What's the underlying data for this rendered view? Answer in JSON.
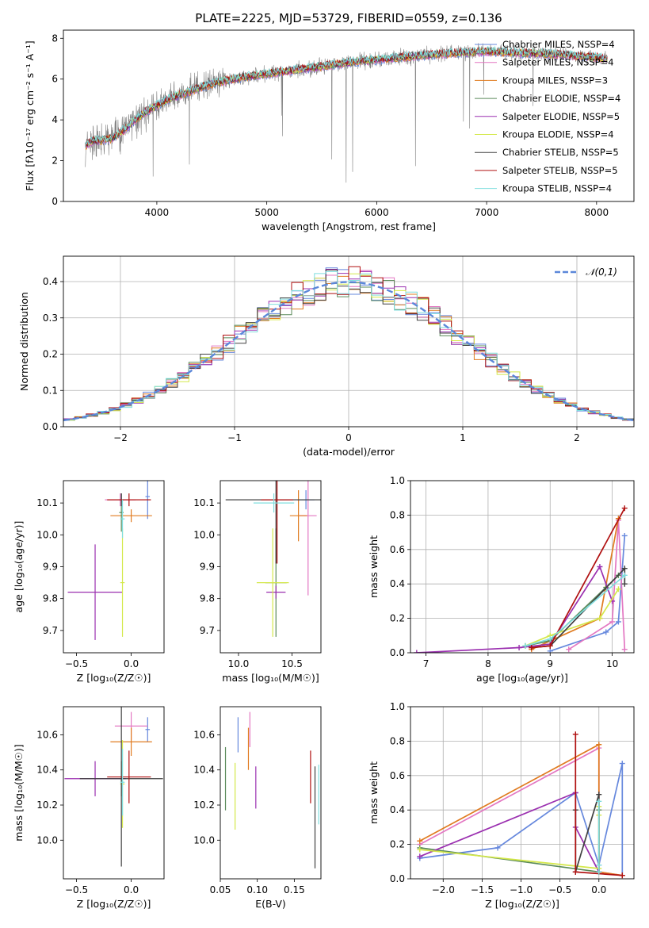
{
  "title": "PLATE=2225, MJD=53729, FIBERID=0559, z=0.136",
  "colors": {
    "Chabrier MILES": "#6688dd",
    "Salpeter MILES": "#e377c2",
    "Kroupa MILES": "#e07b20",
    "Chabrier ELODIE": "#5a8a5a",
    "Salpeter ELODIE": "#9b30b0",
    "Kroupa ELODIE": "#d4e84a",
    "Chabrier STELIB": "#404040",
    "Salpeter STELIB": "#b01010",
    "Kroupa STELIB": "#7fdede",
    "data": "#808080",
    "gaussian": "#5b87d9"
  },
  "chart_data": [
    {
      "type": "line",
      "id": "spectrum",
      "xlabel": "wavelength [Angstrom, rest frame]",
      "ylabel": "Flux [fλ10⁻¹⁷ erg cm⁻² s⁻¹ A⁻¹]",
      "xlim": [
        3150,
        8340
      ],
      "ylim": [
        0,
        8.4
      ],
      "xticks": [
        4000,
        5000,
        6000,
        7000,
        8000
      ],
      "yticks": [
        0,
        2,
        4,
        6,
        8
      ],
      "legend_position": "right",
      "legend": [
        "Chabrier MILES, NSSP=4",
        "Salpeter MILES, NSSP=4",
        "Kroupa MILES, NSSP=3",
        "Chabrier ELODIE, NSSP=4",
        "Salpeter ELODIE, NSSP=5",
        "Kroupa ELODIE, NSSP=4",
        "Chabrier STELIB, NSSP=5",
        "Salpeter STELIB, NSSP=5",
        "Kroupa STELIB, NSSP=4"
      ],
      "model_continuum": {
        "x": [
          3350,
          3400,
          3500,
          3600,
          3700,
          3800,
          3900,
          4000,
          4100,
          4200,
          4300,
          4400,
          4500,
          4600,
          4800,
          5000,
          5200,
          5400,
          5600,
          5800,
          6000,
          6200,
          6500,
          6800,
          7000,
          7200,
          7500,
          7800,
          8100
        ],
        "y": [
          2.7,
          2.95,
          3.0,
          3.1,
          3.5,
          4.0,
          4.4,
          4.7,
          5.0,
          5.2,
          5.4,
          5.6,
          5.75,
          5.9,
          6.1,
          6.25,
          6.4,
          6.55,
          6.7,
          6.85,
          6.95,
          7.05,
          7.2,
          7.3,
          7.35,
          7.3,
          7.25,
          7.15,
          7.0
        ]
      }
    },
    {
      "type": "histogram",
      "id": "residuals",
      "xlabel": "(data-model)/error",
      "ylabel": "Normed distribution",
      "xlim": [
        -2.5,
        2.5
      ],
      "ylim": [
        0,
        0.47
      ],
      "xticks": [
        -2,
        -1,
        0,
        1,
        2
      ],
      "yticks": [
        0.0,
        0.1,
        0.2,
        0.3,
        0.4
      ],
      "legend": [
        "𝒩(0,1)"
      ],
      "legend_position": "top-right",
      "grid": true
    },
    {
      "type": "scatter",
      "id": "age-vs-Z",
      "xlabel": "Z [log₁₀(Z/Z☉)]",
      "ylabel": "age  [log₁₀(age/yr)]",
      "xlim": [
        -0.62,
        0.3
      ],
      "ylim": [
        9.63,
        10.17
      ],
      "xticks": [
        -0.5,
        0.0
      ],
      "yticks": [
        9.7,
        9.8,
        9.9,
        10.0,
        10.1
      ],
      "points": [
        {
          "model": "Chabrier MILES",
          "x": 0.15,
          "xerr": 0.02,
          "y": 10.12,
          "yerr": 0.07
        },
        {
          "model": "Salpeter MILES",
          "x": -0.1,
          "xerr": 0.14,
          "y": 10.11,
          "yerr": 0.02
        },
        {
          "model": "Kroupa MILES",
          "x": 0.0,
          "xerr": 0.19,
          "y": 10.06,
          "yerr": 0.02
        },
        {
          "model": "Chabrier ELODIE",
          "x": -0.09,
          "xerr": 0.02,
          "y": 10.07,
          "yerr": 0.06
        },
        {
          "model": "Salpeter ELODIE",
          "x": -0.33,
          "xerr": 0.25,
          "y": 9.82,
          "yerr": 0.15
        },
        {
          "model": "Kroupa ELODIE",
          "x": -0.08,
          "xerr": 0.02,
          "y": 9.85,
          "yerr": 0.17
        },
        {
          "model": "Chabrier STELIB",
          "x": -0.09,
          "xerr": 0.02,
          "y": 10.11,
          "yerr": 0.02
        },
        {
          "model": "Salpeter STELIB",
          "x": -0.02,
          "xerr": 0.2,
          "y": 10.11,
          "yerr": 0.02
        },
        {
          "model": "Kroupa STELIB",
          "x": -0.08,
          "xerr": 0.02,
          "y": 10.05,
          "yerr": 0.06
        }
      ]
    },
    {
      "type": "scatter",
      "id": "age-vs-mass",
      "xlabel": "mass [log₁₀(M/M☉)]",
      "ylabel": "",
      "xlim": [
        9.83,
        10.77
      ],
      "ylim": [
        9.63,
        10.17
      ],
      "xticks": [
        10.0,
        10.5
      ],
      "yticks": [
        9.7,
        9.8,
        9.9,
        10.0,
        10.1
      ],
      "points": [
        {
          "model": "Chabrier MILES",
          "x": 10.63,
          "xerr": 0.08,
          "y": 10.11,
          "yerr": 0.03
        },
        {
          "model": "Salpeter MILES",
          "x": 10.65,
          "xerr": 0.08,
          "y": 10.06,
          "yerr": 0.25
        },
        {
          "model": "Kroupa MILES",
          "x": 10.56,
          "xerr": 0.08,
          "y": 10.06,
          "yerr": 0.08
        },
        {
          "model": "Chabrier ELODIE",
          "x": 10.35,
          "xerr": 0.1,
          "y": 9.85,
          "yerr": 0.17
        },
        {
          "model": "Salpeter ELODIE",
          "x": 10.35,
          "xerr": 0.09,
          "y": 9.82,
          "yerr": 0.02
        },
        {
          "model": "Kroupa ELODIE",
          "x": 10.32,
          "xerr": 0.15,
          "y": 9.85,
          "yerr": 0.17
        },
        {
          "model": "Chabrier STELIB",
          "x": 10.35,
          "xerr": 0.47,
          "y": 10.11,
          "yerr": 0.2
        },
        {
          "model": "Salpeter STELIB",
          "x": 10.36,
          "xerr": 0.15,
          "y": 10.11,
          "yerr": 0.2
        },
        {
          "model": "Kroupa STELIB",
          "x": 10.33,
          "xerr": 0.19,
          "y": 10.1,
          "yerr": 0.03
        }
      ]
    },
    {
      "type": "line",
      "id": "weight-vs-age",
      "xlabel": "age  [log₁₀(age/yr)]",
      "ylabel": "mass weight",
      "xlim": [
        6.75,
        10.35
      ],
      "ylim": [
        0,
        1
      ],
      "xticks": [
        7,
        8,
        9,
        10
      ],
      "yticks": [
        0.0,
        0.2,
        0.4,
        0.6,
        0.8,
        1.0
      ],
      "grid": true,
      "series": [
        {
          "model": "Chabrier MILES",
          "points": [
            [
              9.0,
              0.01
            ],
            [
              9.9,
              0.12
            ],
            [
              10.1,
              0.18
            ],
            [
              10.2,
              0.68
            ]
          ]
        },
        {
          "model": "Salpeter MILES",
          "points": [
            [
              9.3,
              0.02
            ],
            [
              10.0,
              0.18
            ],
            [
              10.1,
              0.77
            ],
            [
              10.2,
              0.02
            ]
          ]
        },
        {
          "model": "Kroupa MILES",
          "points": [
            [
              8.7,
              0.02
            ],
            [
              9.8,
              0.2
            ],
            [
              10.1,
              0.78
            ]
          ]
        },
        {
          "model": "Chabrier ELODIE",
          "points": [
            [
              8.6,
              0.04
            ],
            [
              9.0,
              0.07
            ],
            [
              9.9,
              0.38
            ],
            [
              10.1,
              0.45
            ]
          ]
        },
        {
          "model": "Salpeter ELODIE",
          "points": [
            [
              6.85,
              0.0
            ],
            [
              8.5,
              0.03
            ],
            [
              9.0,
              0.05
            ],
            [
              9.8,
              0.5
            ],
            [
              10.0,
              0.3
            ]
          ]
        },
        {
          "model": "Kroupa ELODIE",
          "points": [
            [
              8.6,
              0.04
            ],
            [
              9.0,
              0.1
            ],
            [
              9.8,
              0.2
            ],
            [
              10.1,
              0.37
            ]
          ]
        },
        {
          "model": "Chabrier STELIB",
          "points": [
            [
              8.7,
              0.03
            ],
            [
              9.0,
              0.04
            ],
            [
              10.2,
              0.49
            ],
            [
              10.2,
              0.4
            ]
          ]
        },
        {
          "model": "Salpeter STELIB",
          "points": [
            [
              8.7,
              0.03
            ],
            [
              9.0,
              0.04
            ],
            [
              10.2,
              0.84
            ]
          ]
        },
        {
          "model": "Kroupa STELIB",
          "points": [
            [
              8.6,
              0.04
            ],
            [
              9.0,
              0.08
            ],
            [
              10.2,
              0.45
            ]
          ]
        }
      ]
    },
    {
      "type": "scatter",
      "id": "mass-vs-Z",
      "xlabel": "Z [log₁₀(Z/Z☉)]",
      "ylabel": "mass [log₁₀(M/M☉)]",
      "xlim": [
        -0.62,
        0.3
      ],
      "ylim": [
        9.78,
        10.76
      ],
      "xticks": [
        -0.5,
        0.0
      ],
      "yticks": [
        10.0,
        10.2,
        10.4,
        10.6
      ],
      "points": [
        {
          "model": "Chabrier MILES",
          "x": 0.15,
          "xerr": 0.02,
          "y": 10.63,
          "yerr": 0.07
        },
        {
          "model": "Salpeter MILES",
          "x": 0.0,
          "xerr": 0.15,
          "y": 10.65,
          "yerr": 0.08
        },
        {
          "model": "Kroupa MILES",
          "x": 0.0,
          "xerr": 0.19,
          "y": 10.56,
          "yerr": 0.08
        },
        {
          "model": "Chabrier ELODIE",
          "x": -0.09,
          "xerr": 0.02,
          "y": 10.35,
          "yerr": 0.1
        },
        {
          "model": "Salpeter ELODIE",
          "x": -0.33,
          "xerr": 0.28,
          "y": 10.35,
          "yerr": 0.1
        },
        {
          "model": "Kroupa ELODIE",
          "x": -0.08,
          "xerr": 0.02,
          "y": 10.32,
          "yerr": 0.25
        },
        {
          "model": "Chabrier STELIB",
          "x": -0.09,
          "xerr": 0.38,
          "y": 10.35,
          "yerr": 0.5
        },
        {
          "model": "Salpeter STELIB",
          "x": -0.02,
          "xerr": 0.2,
          "y": 10.36,
          "yerr": 0.15
        },
        {
          "model": "Kroupa STELIB",
          "x": -0.08,
          "xerr": 0.02,
          "y": 10.33,
          "yerr": 0.19
        }
      ]
    },
    {
      "type": "scatter",
      "id": "mass-vs-EBV",
      "xlabel": "E(B-V)",
      "ylabel": "",
      "xlim": [
        0.05,
        0.186
      ],
      "ylim": [
        9.78,
        10.76
      ],
      "xticks": [
        0.05,
        0.1,
        0.15
      ],
      "xticklabels": [
        "0.05",
        "0.10",
        "0.15"
      ],
      "yticks": [
        10.0,
        10.2,
        10.4,
        10.6
      ],
      "points": [
        {
          "model": "Chabrier MILES",
          "x": 0.074,
          "y": 10.6,
          "yerr": 0.1
        },
        {
          "model": "Salpeter MILES",
          "x": 0.09,
          "y": 10.63,
          "yerr": 0.1
        },
        {
          "model": "Kroupa MILES",
          "x": 0.088,
          "y": 10.52,
          "yerr": 0.12
        },
        {
          "model": "Chabrier ELODIE",
          "x": 0.057,
          "y": 10.35,
          "yerr": 0.18
        },
        {
          "model": "Salpeter ELODIE",
          "x": 0.098,
          "y": 10.3,
          "yerr": 0.12
        },
        {
          "model": "Kroupa ELODIE",
          "x": 0.07,
          "y": 10.25,
          "yerr": 0.19
        },
        {
          "model": "Chabrier STELIB",
          "x": 0.178,
          "y": 10.13,
          "yerr": 0.29
        },
        {
          "model": "Salpeter STELIB",
          "x": 0.172,
          "y": 10.36,
          "yerr": 0.15
        },
        {
          "model": "Kroupa STELIB",
          "x": 0.183,
          "y": 10.26,
          "yerr": 0.17
        }
      ]
    },
    {
      "type": "line",
      "id": "weight-vs-Z",
      "xlabel": "Z [log₁₀(Z/Z☉)]",
      "ylabel": "mass weight",
      "xlim": [
        -2.42,
        0.45
      ],
      "ylim": [
        0,
        1
      ],
      "xticks": [
        -2.0,
        -1.5,
        -1.0,
        -0.5,
        0.0
      ],
      "yticks": [
        0.0,
        0.2,
        0.4,
        0.6,
        0.8,
        1.0
      ],
      "grid": true,
      "series": [
        {
          "model": "Chabrier MILES",
          "points": [
            [
              -2.3,
              0.12
            ],
            [
              -1.3,
              0.18
            ],
            [
              -0.3,
              0.5
            ],
            [
              0.0,
              0.08
            ],
            [
              0.3,
              0.67
            ],
            [
              0.3,
              0.02
            ]
          ]
        },
        {
          "model": "Salpeter MILES",
          "points": [
            [
              -2.3,
              0.2
            ],
            [
              0.0,
              0.76
            ],
            [
              0.0,
              0.04
            ],
            [
              0.3,
              0.02
            ]
          ]
        },
        {
          "model": "Kroupa MILES",
          "points": [
            [
              -2.3,
              0.22
            ],
            [
              0.0,
              0.78
            ],
            [
              0.0,
              0.04
            ],
            [
              0.3,
              0.02
            ]
          ]
        },
        {
          "model": "Chabrier ELODIE",
          "points": [
            [
              -2.3,
              0.18
            ],
            [
              0.0,
              0.04
            ],
            [
              0.0,
              0.4
            ]
          ]
        },
        {
          "model": "Salpeter ELODIE",
          "points": [
            [
              -2.3,
              0.13
            ],
            [
              -0.3,
              0.5
            ],
            [
              -0.3,
              0.3
            ],
            [
              0.0,
              0.04
            ]
          ]
        },
        {
          "model": "Kroupa ELODIE",
          "points": [
            [
              -2.3,
              0.17
            ],
            [
              0.0,
              0.06
            ],
            [
              0.0,
              0.42
            ],
            [
              0.0,
              0.37
            ]
          ]
        },
        {
          "model": "Chabrier STELIB",
          "points": [
            [
              -0.3,
              0.4
            ],
            [
              -0.3,
              0.04
            ],
            [
              0.0,
              0.49
            ],
            [
              0.0,
              0.04
            ]
          ]
        },
        {
          "model": "Salpeter STELIB",
          "points": [
            [
              -0.3,
              0.84
            ],
            [
              -0.3,
              0.04
            ],
            [
              0.3,
              0.02
            ]
          ]
        },
        {
          "model": "Kroupa STELIB",
          "points": [
            [
              0.0,
              0.45
            ],
            [
              0.0,
              0.04
            ],
            [
              0.0,
              0.08
            ]
          ]
        }
      ]
    }
  ]
}
